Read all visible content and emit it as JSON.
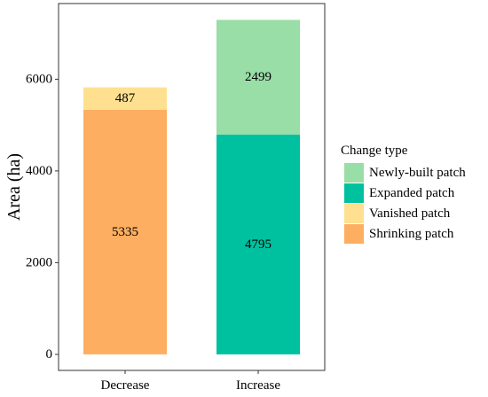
{
  "chart_data": {
    "type": "bar",
    "stacked": true,
    "categories": [
      "Decrease",
      "Increase"
    ],
    "series": [
      {
        "name": "Shrinking patch",
        "color": "#FDAE61",
        "values": [
          5335,
          null
        ]
      },
      {
        "name": "Vanished patch",
        "color": "#FEE090",
        "values": [
          487,
          null
        ]
      },
      {
        "name": "Expanded patch",
        "color": "#00C19F",
        "values": [
          null,
          4795
        ]
      },
      {
        "name": "Newly-built patch",
        "color": "#99DDA7",
        "values": [
          null,
          2499
        ]
      }
    ],
    "data_labels": [
      {
        "category": "Decrease",
        "series": "Shrinking patch",
        "text": "5335"
      },
      {
        "category": "Decrease",
        "series": "Vanished patch",
        "text": "487"
      },
      {
        "category": "Increase",
        "series": "Expanded patch",
        "text": "4795"
      },
      {
        "category": "Increase",
        "series": "Newly-built patch",
        "text": "2499"
      }
    ],
    "ylabel": "Area (ha)",
    "xlabel": "",
    "ylim": [
      -350,
      7650
    ],
    "yticks": [
      0,
      2000,
      4000,
      6000
    ],
    "grid": false,
    "legend": {
      "title": "Change type",
      "position": "right",
      "entries": [
        {
          "label": "Newly-built patch",
          "color": "#99DDA7"
        },
        {
          "label": "Expanded patch",
          "color": "#00C19F"
        },
        {
          "label": "Vanished patch",
          "color": "#FEE090"
        },
        {
          "label": "Shrinking patch",
          "color": "#FDAE61"
        }
      ]
    }
  }
}
